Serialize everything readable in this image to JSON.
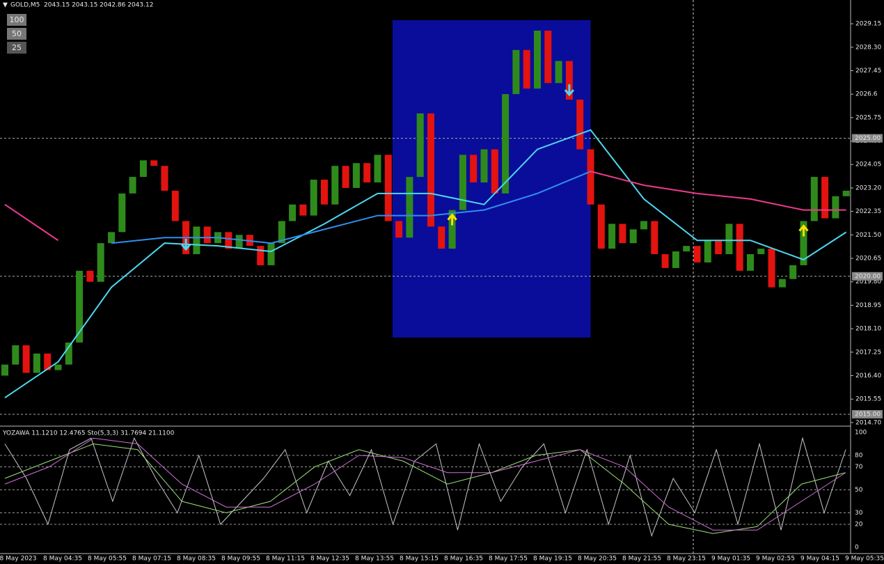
{
  "header": {
    "symbol": "GOLD,M5",
    "quote": "2043.15 2043.15 2042.86 2043.12"
  },
  "buttons": [
    "100",
    "50",
    "25"
  ],
  "chart_data": {
    "type": "bar",
    "open": 2016.4,
    "closes": [
      2016.8,
      2017.5,
      2016.5,
      2017.2,
      2016.6,
      2016.8,
      2017.6,
      2020.2,
      2019.8,
      2021.2,
      2021.6,
      2023.0,
      2023.6,
      2024.2,
      2024.0,
      2023.1,
      2022.0,
      2020.8,
      2021.8,
      2021.2,
      2021.6,
      2021.0,
      2021.5,
      2021.1,
      2020.4,
      2021.2,
      2022.0,
      2022.6,
      2022.2,
      2023.5,
      2022.6,
      2024.0,
      2023.2,
      2024.1,
      2023.4,
      2024.4,
      2022.0,
      2021.4,
      2023.6,
      2025.9,
      2021.8,
      2021.0,
      2022.4,
      2024.4,
      2023.4,
      2024.6,
      2023.0,
      2026.6,
      2028.2,
      2026.8,
      2028.9,
      2027.0,
      2027.8,
      2026.4,
      2024.6,
      2022.6,
      2021.0,
      2021.9,
      2021.2,
      2021.7,
      2022.0,
      2020.8,
      2020.3,
      2020.9,
      2021.1,
      2020.5,
      2021.3,
      2020.8,
      2021.9,
      2020.2,
      2020.8,
      2021.0,
      2019.6,
      2019.9,
      2020.4,
      2022.0,
      2023.6,
      2022.1,
      2022.9,
      2023.1
    ],
    "up_color": "#2f8a1c",
    "down_color": "#e3130f",
    "ma_x": [
      0,
      5,
      10,
      15,
      20,
      25,
      30,
      35,
      40,
      45,
      50,
      55,
      60,
      65,
      70,
      75,
      79
    ],
    "lines": [
      {
        "color": "#4dd8f0",
        "values": [
          2015.6,
          2016.9,
          2019.6,
          2021.2,
          2021.1,
          2020.9,
          2021.9,
          2023.0,
          2023.0,
          2022.6,
          2024.6,
          2025.3,
          2022.8,
          2021.3,
          2021.3,
          2020.6,
          2021.6
        ]
      },
      {
        "color": "#2f8ff0",
        "values": [
          null,
          null,
          2021.2,
          2021.4,
          2021.4,
          2021.2,
          2021.7,
          2022.2,
          2022.2,
          2022.4,
          2023.0,
          2023.8,
          null,
          null,
          null,
          null,
          null
        ]
      },
      {
        "color": "#f0388f",
        "values": [
          2022.6,
          2021.3,
          null,
          null,
          null,
          null,
          null,
          null,
          null,
          null,
          null,
          2023.8,
          2023.3,
          2023.0,
          2022.8,
          2022.4,
          2022.4
        ]
      }
    ],
    "highlight": {
      "bars": [
        36.4,
        55
      ],
      "prices": [
        2017.78,
        2029.28
      ],
      "color": "#0a0d9a"
    },
    "sell_bars": [
      17,
      53
    ],
    "buy_bars": [
      42,
      75
    ],
    "ylim": [
      2014.57,
      2030.01
    ],
    "yticks": [
      2029.15,
      {
        "value": 2028.3,
        "label": "2028.30"
      },
      2027.45,
      2026.6,
      2025.75,
      {
        "value": 2024.9,
        "label": "2024.90"
      },
      2024.05,
      {
        "value": 2023.2,
        "label": "2023.20"
      },
      2022.35,
      {
        "value": 2021.5,
        "label": "2021.50"
      },
      2020.65,
      {
        "value": 2019.8,
        "label": "2019.80"
      },
      2018.95,
      {
        "value": 2018.1,
        "label": "2018.10"
      },
      2017.25,
      {
        "value": 2016.4,
        "label": "2016.40"
      },
      2015.55,
      {
        "value": 2014.7,
        "label": "2014.70"
      }
    ],
    "levels": [
      {
        "value": 2025,
        "label": "2025.00"
      },
      {
        "value": 2020,
        "label": "2020.00"
      },
      {
        "value": 2015,
        "label": "2015.00"
      }
    ],
    "time_labels": [
      "8 May 2023",
      "8 May 04:35",
      "8 May 05:55",
      "8 May 07:15",
      "8 May 08:35",
      "8 May 09:55",
      "8 May 11:15",
      "8 May 12:35",
      "8 May 13:55",
      "8 May 15:15",
      "8 May 16:35",
      "8 May 17:55",
      "8 May 19:15",
      "8 May 20:35",
      "8 May 21:55",
      "8 May 23:15",
      "9 May 01:35",
      "9 May 02:55",
      "9 May 04:15",
      "9 May 05:35"
    ],
    "oscillator": {
      "title": "YOZAWA 11.1210 12.4765  Sto(5,3,3) 31.7694 21.1100",
      "ylim": [
        0,
        100
      ],
      "yticks": [
        100,
        80,
        70,
        50,
        30,
        20,
        0
      ],
      "series": [
        {
          "color": "#c8c8c8",
          "values": [
            90,
            60,
            20,
            85,
            95,
            40,
            95,
            60,
            30,
            80,
            20,
            40,
            60,
            85,
            30,
            75,
            45,
            85,
            20,
            75,
            90,
            15,
            90,
            40,
            70,
            90,
            30,
            85,
            20,
            80,
            10,
            60,
            30,
            85,
            20,
            90,
            15,
            95,
            30,
            85
          ]
        },
        {
          "color": "#9be07a",
          "values": [
            60,
            75,
            90,
            85,
            40,
            30,
            40,
            70,
            85,
            75,
            55,
            65,
            80,
            85,
            55,
            20,
            12,
            18,
            55,
            65
          ]
        },
        {
          "color": "#d070d8",
          "values": [
            55,
            70,
            95,
            90,
            55,
            35,
            35,
            55,
            80,
            78,
            65,
            65,
            75,
            85,
            70,
            35,
            15,
            15,
            40,
            65
          ]
        }
      ]
    }
  }
}
